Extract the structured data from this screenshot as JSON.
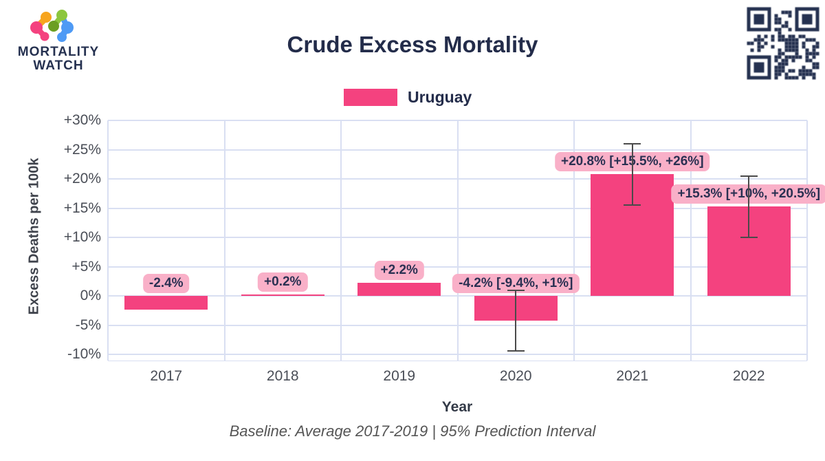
{
  "brand": {
    "line1": "MORTALITY",
    "line2": "WATCH"
  },
  "header": {
    "title": "Crude Excess Mortality"
  },
  "legend": {
    "label": "Uruguay"
  },
  "chart_data": {
    "type": "bar",
    "title": "Crude Excess Mortality",
    "categories": [
      "2017",
      "2018",
      "2019",
      "2020",
      "2021",
      "2022"
    ],
    "series": [
      {
        "name": "Uruguay",
        "values": [
          -2.4,
          0.2,
          2.2,
          -4.2,
          20.8,
          15.3
        ]
      }
    ],
    "error_bars": [
      null,
      null,
      null,
      {
        "low": -9.4,
        "high": 1
      },
      {
        "low": 15.5,
        "high": 26
      },
      {
        "low": 10,
        "high": 20.5
      }
    ],
    "bar_labels": [
      "-2.4%",
      "+0.2%",
      "+2.2%",
      "-4.2% [-9.4%, +1%]",
      "+20.8% [+15.5%, +26%]",
      "+15.3% [+10%, +20.5%]"
    ],
    "xlabel": "Year",
    "ylabel": "Excess Deaths per 100k",
    "ylim": [
      -10,
      30
    ],
    "yticks": [
      30,
      25,
      20,
      15,
      10,
      5,
      0,
      -5,
      -10
    ],
    "ytick_labels": [
      "+30%",
      "+25%",
      "+20%",
      "+15%",
      "+10%",
      "+5%",
      "0%",
      "-5%",
      "-10%"
    ],
    "grid": true,
    "legend_position": "top",
    "footnote": "Baseline: Average 2017-2019 | 95% Prediction Interval"
  },
  "colors": {
    "bar": "#f4427f",
    "label_bg": "#f9b0c8",
    "label_text": "#2a3052",
    "title_text": "#232c4a",
    "axis_text": "#4a4e57",
    "grid": "#d9dff2",
    "error_bar": "#4a4a4a",
    "brand_navy": "#253150"
  }
}
